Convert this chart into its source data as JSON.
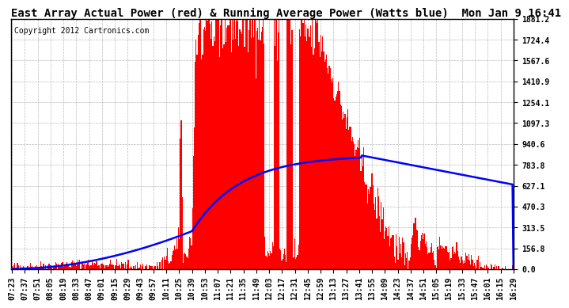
{
  "title": "East Array Actual Power (red) & Running Average Power (Watts blue)  Mon Jan 9 16:41",
  "copyright": "Copyright 2012 Cartronics.com",
  "background_color": "#ffffff",
  "plot_bg_color": "#ffffff",
  "grid_color": "#aaaaaa",
  "red_color": "#ff0000",
  "blue_color": "#0000ff",
  "ymax": 1881.2,
  "yticks": [
    0.0,
    156.8,
    313.5,
    470.3,
    627.1,
    783.8,
    940.6,
    1097.3,
    1254.1,
    1410.9,
    1567.6,
    1724.4,
    1881.2
  ],
  "xtick_labels": [
    "07:23",
    "07:37",
    "07:51",
    "08:05",
    "08:19",
    "08:33",
    "08:47",
    "09:01",
    "09:15",
    "09:29",
    "09:43",
    "09:57",
    "10:11",
    "10:25",
    "10:39",
    "10:53",
    "11:07",
    "11:21",
    "11:35",
    "11:49",
    "12:03",
    "12:17",
    "12:31",
    "12:45",
    "12:59",
    "13:13",
    "13:27",
    "13:41",
    "13:55",
    "14:09",
    "14:23",
    "14:37",
    "14:51",
    "15:05",
    "15:19",
    "15:33",
    "15:47",
    "16:01",
    "16:15",
    "16:29"
  ],
  "title_fontsize": 10,
  "tick_fontsize": 7,
  "copyright_fontsize": 7
}
